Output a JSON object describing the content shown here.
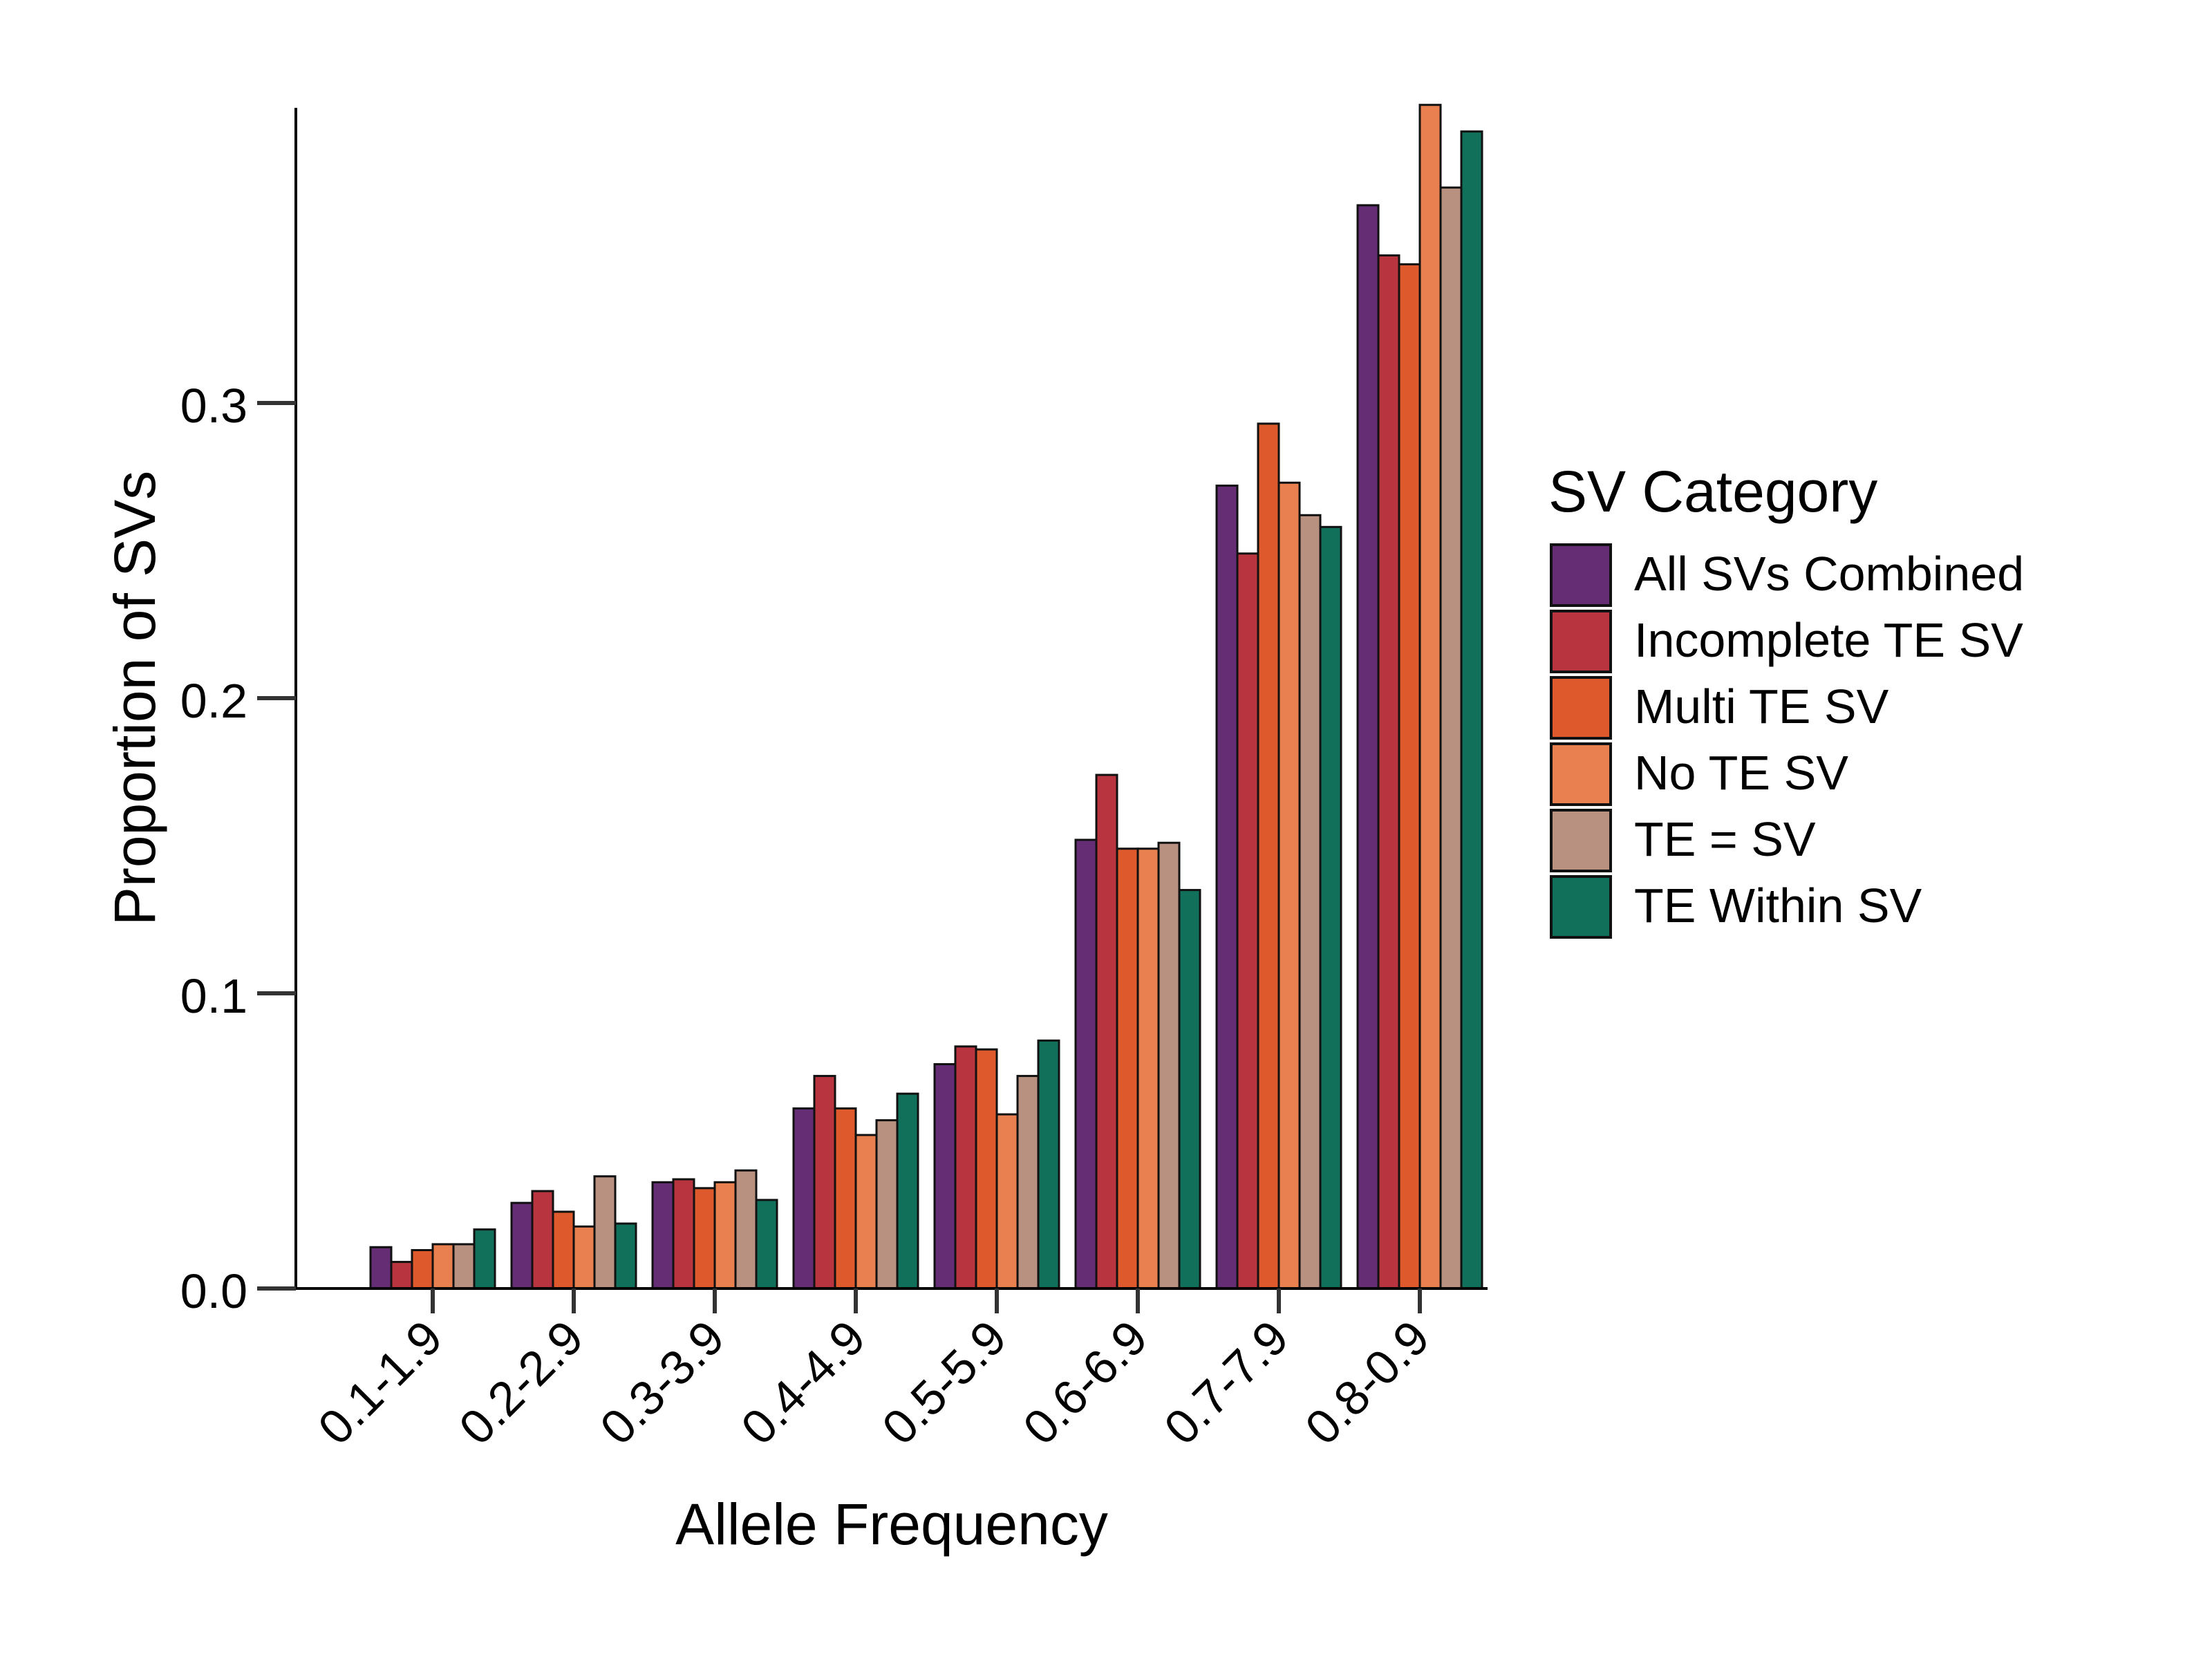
{
  "chart_data": {
    "type": "bar",
    "xlabel": "Allele Frequency",
    "ylabel": "Proportion of SVs",
    "ylim": [
      0,
      0.4
    ],
    "yticks": [
      "0.0",
      "0.1",
      "0.2",
      "0.3"
    ],
    "ytick_values": [
      0,
      0.1,
      0.2,
      0.3
    ],
    "categories": [
      "0.1-1.9",
      "0.2-2.9",
      "0.3-3.9",
      "0.4-4.9",
      "0.5-5.9",
      "0.6-6.9",
      "0.7-7.9",
      "0.8-0.9"
    ],
    "legend_title": "SV Category",
    "legend_position": "right",
    "grid": false,
    "series": [
      {
        "name": "All SVs Combined",
        "color": "#652D73",
        "values": [
          0.014,
          0.029,
          0.036,
          0.061,
          0.076,
          0.152,
          0.272,
          0.367
        ]
      },
      {
        "name": "Incomplete TE SV",
        "color": "#B8353F",
        "values": [
          0.009,
          0.033,
          0.037,
          0.072,
          0.082,
          0.174,
          0.249,
          0.35
        ]
      },
      {
        "name": "Multi TE SV",
        "color": "#DE5A2C",
        "values": [
          0.013,
          0.026,
          0.034,
          0.061,
          0.081,
          0.149,
          0.293,
          0.347
        ]
      },
      {
        "name": "No TE SV",
        "color": "#E8804F",
        "values": [
          0.015,
          0.021,
          0.036,
          0.052,
          0.059,
          0.149,
          0.273,
          0.401
        ]
      },
      {
        "name": "TE = SV",
        "color": "#B89180",
        "values": [
          0.015,
          0.038,
          0.04,
          0.057,
          0.072,
          0.151,
          0.262,
          0.373
        ]
      },
      {
        "name": "TE Within SV",
        "color": "#10705A",
        "values": [
          0.02,
          0.022,
          0.03,
          0.066,
          0.084,
          0.135,
          0.258,
          0.392
        ]
      }
    ]
  }
}
